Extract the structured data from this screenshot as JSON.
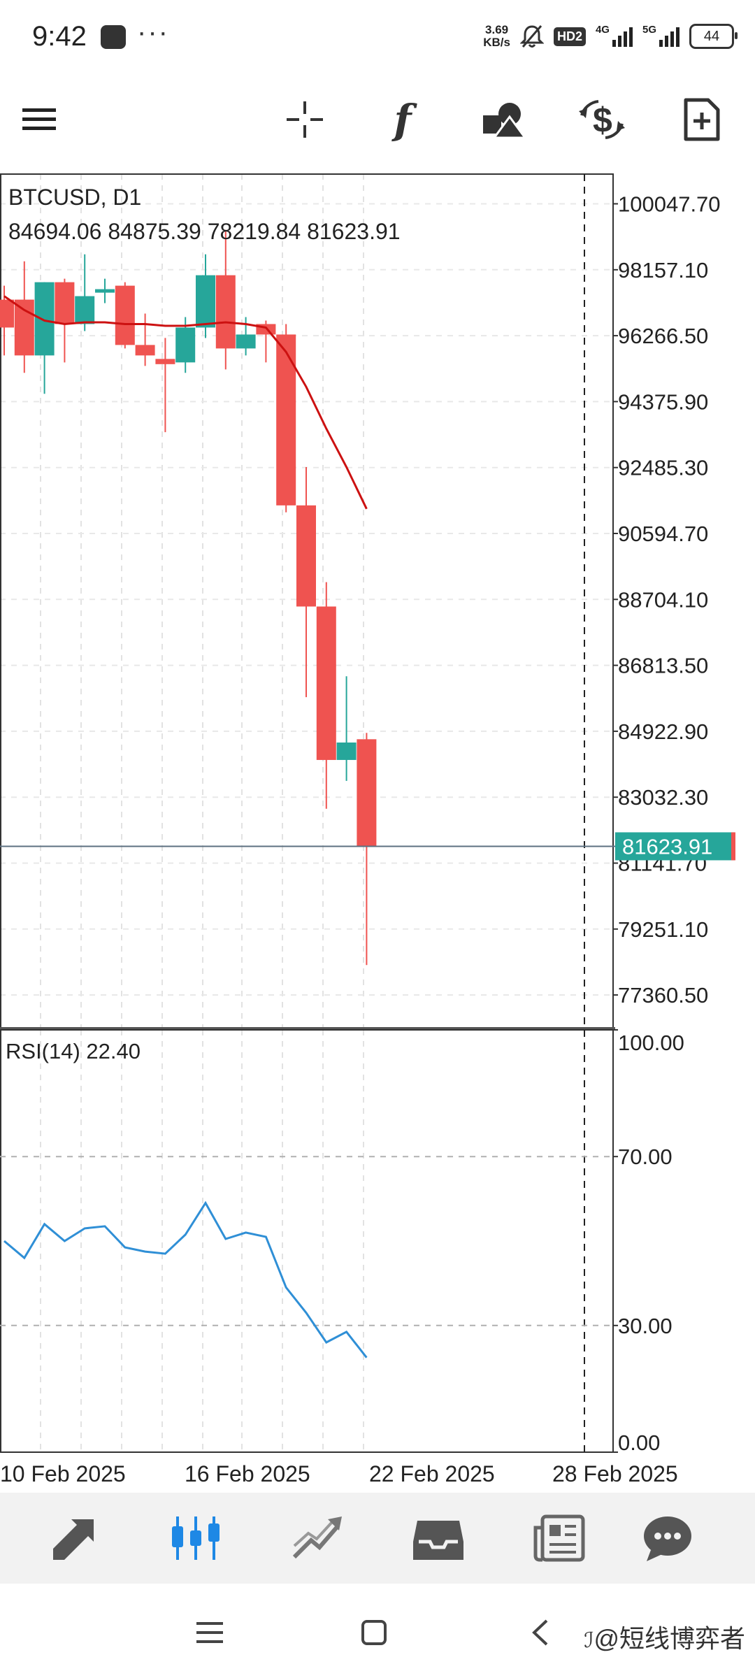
{
  "status_bar": {
    "time": "9:42",
    "more": "···",
    "net_speed_value": "3.69",
    "net_speed_unit": "KB/s",
    "hd_badge": "HD2",
    "sim1_label": "4G",
    "sim2_label": "5G",
    "battery": "44"
  },
  "toolbar": {
    "icons": [
      "menu-icon",
      "crosshair-icon",
      "indicators-icon",
      "objects-icon",
      "trade-icon",
      "new-order-icon"
    ],
    "indicators_glyph": "f"
  },
  "chart": {
    "symbol_line": "BTCUSD, D1",
    "ohlc_line": "84694.06 84875.39 78219.84 81623.91",
    "current_price_label": "81623.91",
    "price_axis_labels": [
      "100047.70",
      "98157.10",
      "96266.50",
      "94375.90",
      "92485.30",
      "90594.70",
      "88704.10",
      "86813.50",
      "84922.90",
      "83032.30",
      "81141.70",
      "79251.10",
      "77360.50"
    ],
    "date_labels": [
      "10 Feb 2025",
      "16 Feb 2025",
      "22 Feb 2025",
      "28 Feb 2025"
    ],
    "colors": {
      "bull": "#26a69a",
      "bear": "#ef5350",
      "ma": "#cc1111",
      "rsi": "#2f8fd6",
      "price_line": "#5c7080"
    }
  },
  "rsi": {
    "title": "RSI(14) 22.40",
    "axis_labels": [
      "100.00",
      "70.00",
      "30.00",
      "0.00"
    ]
  },
  "chart_data": {
    "type": "candlestick",
    "symbol": "BTCUSD",
    "timeframe": "D1",
    "candles": [
      {
        "open": 97300,
        "high": 97700,
        "low": 95700,
        "close": 96500
      },
      {
        "open": 97300,
        "high": 98400,
        "low": 95200,
        "close": 95700
      },
      {
        "open": 95700,
        "high": 97800,
        "low": 94600,
        "close": 97800
      },
      {
        "open": 97800,
        "high": 97900,
        "low": 95500,
        "close": 96600
      },
      {
        "open": 96600,
        "high": 98600,
        "low": 96400,
        "close": 97400
      },
      {
        "open": 97500,
        "high": 97900,
        "low": 97200,
        "close": 97600
      },
      {
        "open": 97700,
        "high": 97800,
        "low": 95900,
        "close": 96000
      },
      {
        "open": 96000,
        "high": 96900,
        "low": 95400,
        "close": 95700
      },
      {
        "open": 95600,
        "high": 96200,
        "low": 93500,
        "close": 95450
      },
      {
        "open": 95500,
        "high": 96800,
        "low": 95200,
        "close": 96500
      },
      {
        "open": 96500,
        "high": 98600,
        "low": 96200,
        "close": 98000
      },
      {
        "open": 98000,
        "high": 99300,
        "low": 95300,
        "close": 95900
      },
      {
        "open": 95900,
        "high": 96800,
        "low": 95700,
        "close": 96300
      },
      {
        "open": 96600,
        "high": 96700,
        "low": 95500,
        "close": 96300
      },
      {
        "open": 96300,
        "high": 96600,
        "low": 91200,
        "close": 91400
      },
      {
        "open": 91400,
        "high": 92500,
        "low": 85900,
        "close": 88500
      },
      {
        "open": 88500,
        "high": 89200,
        "low": 82700,
        "close": 84100
      },
      {
        "open": 84100,
        "high": 86500,
        "low": 83500,
        "close": 84600
      },
      {
        "open": 84694.06,
        "high": 84875.39,
        "low": 78219.84,
        "close": 81623.91
      }
    ],
    "moving_average": [
      97400,
      97000,
      96700,
      96600,
      96650,
      96650,
      96600,
      96600,
      96550,
      96550,
      96600,
      96650,
      96600,
      96500,
      95800,
      94800,
      93600,
      92500,
      91300
    ],
    "price_axis": {
      "min": 76400,
      "max": 100900
    },
    "rsi": {
      "period": 14,
      "last": 22.4,
      "values": [
        50,
        46,
        54,
        50,
        53,
        53.5,
        48.5,
        47.5,
        47,
        51.5,
        59,
        50.5,
        52,
        51,
        39,
        33,
        26,
        28.5,
        22.4
      ],
      "levels": [
        70,
        30
      ],
      "range": [
        0,
        100
      ]
    },
    "x_labels": [
      "10 Feb 2025",
      "16 Feb 2025",
      "22 Feb 2025",
      "28 Feb 2025"
    ]
  },
  "bottom_nav": {
    "items": [
      "quotes-icon",
      "chart-icon",
      "trade-icon",
      "history-icon",
      "news-icon",
      "messages-icon"
    ]
  },
  "watermark": "@短线博弈者"
}
